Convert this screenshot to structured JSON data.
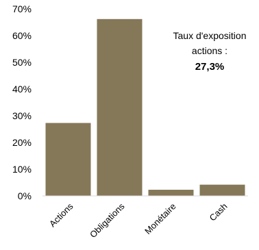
{
  "chart_data": {
    "type": "bar",
    "categories": [
      "Actions",
      "Obligations",
      "Monétaire",
      "Cash"
    ],
    "values": [
      27.3,
      66.2,
      2.3,
      4.2
    ],
    "unit": "%",
    "ylim": [
      0,
      70
    ],
    "y_ticks": [
      "0%",
      "10%",
      "20%",
      "30%",
      "40%",
      "50%",
      "60%",
      "70%"
    ],
    "grid": false,
    "bar_color": "#857859",
    "annotation": {
      "line1": "Taux d'exposition",
      "line2": "actions :",
      "value": "27,3%"
    }
  }
}
